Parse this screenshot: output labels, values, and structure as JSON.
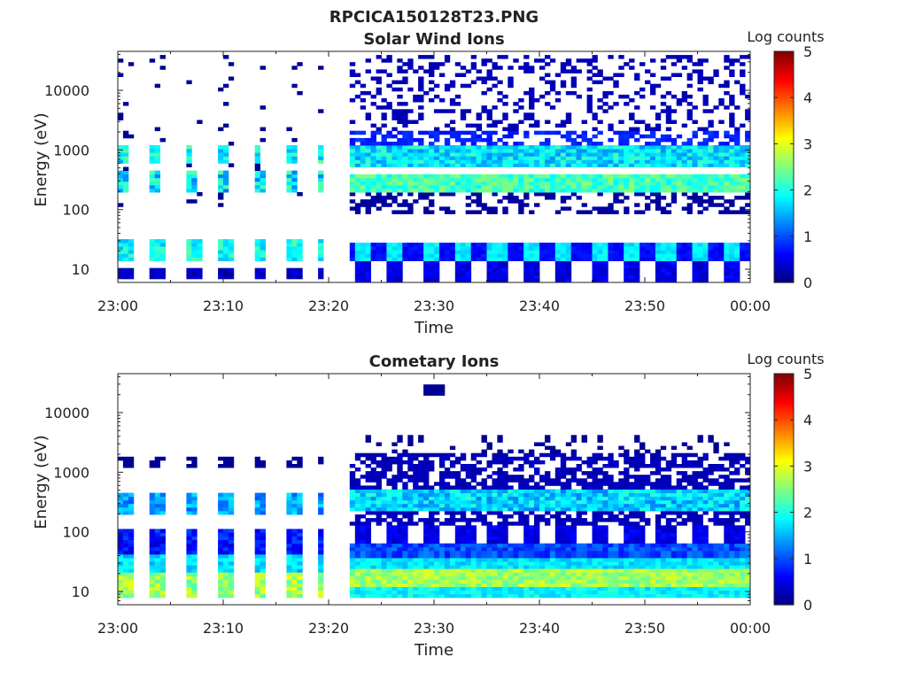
{
  "figure_title": "RPCICA150128T23.PNG",
  "chart_data": [
    {
      "type": "heatmap",
      "title": "Solar Wind Ions",
      "xlabel": "Time",
      "ylabel": "Energy (eV)",
      "xlim": [
        "23:00",
        "00:00"
      ],
      "x_ticks": [
        "23:00",
        "23:10",
        "23:20",
        "23:30",
        "23:40",
        "23:50",
        "00:00"
      ],
      "ylim": [
        6,
        45000
      ],
      "y_scale": "log",
      "y_ticks": [
        10,
        100,
        1000,
        10000
      ],
      "y_tick_labels": [
        "10",
        "100",
        "1000",
        "10000"
      ],
      "colorbar": {
        "label": "Log counts",
        "range": [
          0,
          5
        ],
        "ticks": [
          "0",
          "1",
          "2",
          "3",
          "4",
          "5"
        ],
        "colormap": "jet"
      },
      "data_gap": [
        "23:19",
        "23:22"
      ],
      "approx_bands_eV": [
        {
          "energy": 19,
          "log_counts": 1.8,
          "pattern": "pulsed every ~3 min"
        },
        {
          "energy": 10,
          "log_counts": 0.8
        },
        {
          "energy": 300,
          "log_counts": 2.2
        },
        {
          "energy": 800,
          "log_counts": 2.0
        }
      ]
    },
    {
      "type": "heatmap",
      "title": "Cometary Ions",
      "xlabel": "Time",
      "ylabel": "Energy (eV)",
      "xlim": [
        "23:00",
        "00:00"
      ],
      "x_ticks": [
        "23:00",
        "23:10",
        "23:20",
        "23:30",
        "23:40",
        "23:50",
        "00:00"
      ],
      "ylim": [
        6,
        45000
      ],
      "y_scale": "log",
      "y_ticks": [
        10,
        100,
        1000,
        10000
      ],
      "y_tick_labels": [
        "10",
        "100",
        "1000",
        "10000"
      ],
      "colorbar": {
        "label": "Log counts",
        "range": [
          0,
          5
        ],
        "ticks": [
          "0",
          "1",
          "2",
          "3",
          "4",
          "5"
        ],
        "colormap": "jet"
      },
      "data_gap": [
        "23:19",
        "23:22"
      ],
      "approx_bands_eV": [
        {
          "energy": 19,
          "log_counts": 2.8
        },
        {
          "energy": 14,
          "log_counts": 1.8
        },
        {
          "energy": 28,
          "log_counts": 1.6
        },
        {
          "energy": 350,
          "log_counts": 1.9
        },
        {
          "energy": 80,
          "log_counts": 1.0
        }
      ]
    }
  ]
}
